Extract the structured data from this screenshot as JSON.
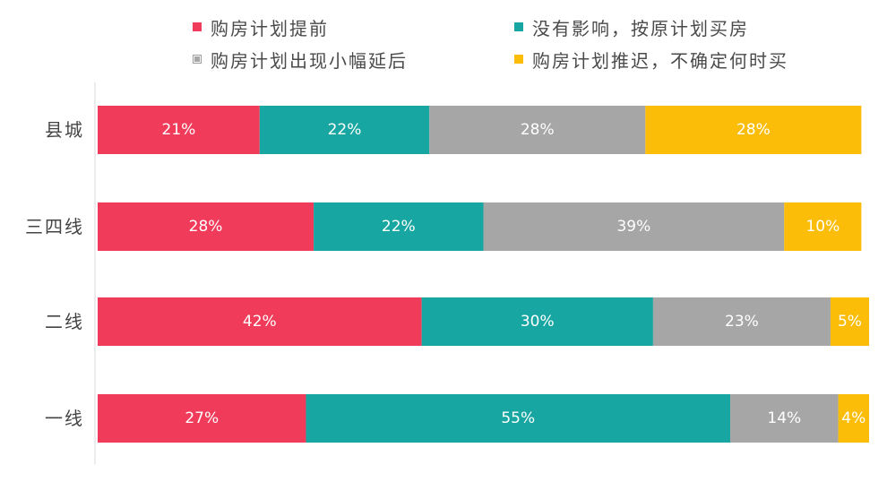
{
  "chart_data": {
    "type": "bar",
    "orientation": "horizontal",
    "stacked": true,
    "grid": false,
    "legend_position": "top",
    "categories": [
      "县城",
      "三四线",
      "二线",
      "一线"
    ],
    "series": [
      {
        "name": "购房计划提前",
        "color": "#f03b5b",
        "values": [
          21,
          28,
          42,
          27
        ],
        "labels": [
          "21%",
          "28%",
          "42%",
          "27%"
        ]
      },
      {
        "name": "没有影响，按原计划买房",
        "color": "#17a6a1",
        "values": [
          22,
          22,
          30,
          55
        ],
        "labels": [
          "22%",
          "22%",
          "30%",
          "55%"
        ]
      },
      {
        "name": "购房计划出现小幅延后",
        "color": "#a6a6a6",
        "values": [
          28,
          39,
          23,
          14
        ],
        "labels": [
          "28%",
          "39%",
          "23%",
          "14%"
        ]
      },
      {
        "name": "购房计划推迟，不确定何时买",
        "color": "#fbbd08",
        "values": [
          28,
          10,
          5,
          4
        ],
        "labels": [
          "28%",
          "10%",
          "5%",
          "4%"
        ]
      }
    ],
    "xlim": [
      0,
      100
    ]
  }
}
